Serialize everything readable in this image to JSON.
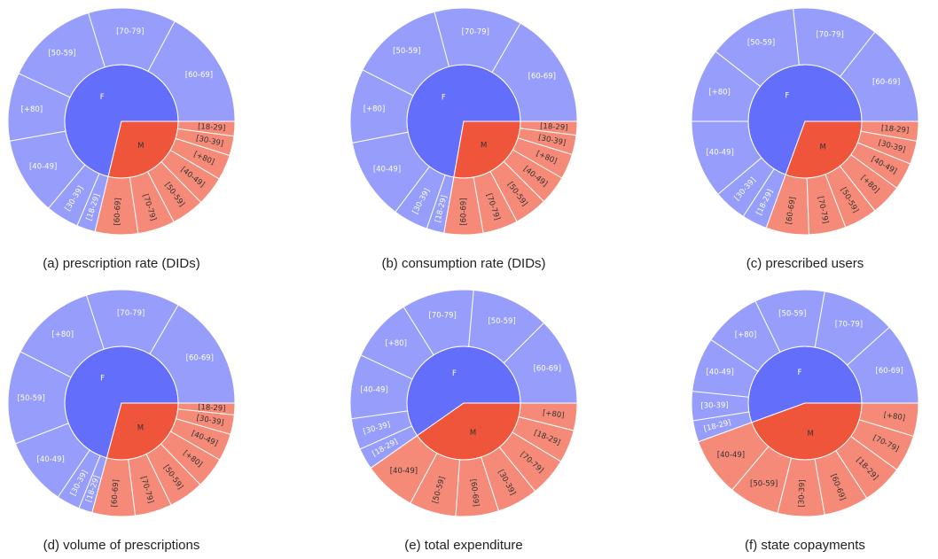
{
  "chart_data": [
    {
      "type": "sunburst",
      "caption": "(a) prescription rate (DIDs)",
      "groups": [
        {
          "label": "F",
          "color": "#636efa",
          "child_color": "#969dfa",
          "text_color": "#ffffff",
          "children": [
            "[60-69]",
            "[70-79]",
            "[50-59]",
            "[+80]",
            "[40-49]",
            "[30-39]",
            "[18-29]"
          ],
          "values": [
            62,
            45,
            48,
            35,
            40,
            17,
            9.5
          ]
        },
        {
          "label": "M",
          "color": "#ef553b",
          "child_color": "#f48a77",
          "text_color": "#333333",
          "children": [
            "[60-69]",
            "[70-79]",
            "[50-59]",
            "[40-49]",
            "[+80]",
            "[30-39]",
            "[18-29]"
          ],
          "values": [
            22,
            19,
            17,
            15,
            13,
            10,
            7.5
          ]
        }
      ]
    },
    {
      "type": "sunburst",
      "caption": "(b) consumption rate (DIDs)",
      "groups": [
        {
          "label": "F",
          "color": "#636efa",
          "child_color": "#969dfa",
          "text_color": "#ffffff",
          "children": [
            "[60-69]",
            "[70-79]",
            "[50-59]",
            "[+80]",
            "[40-49]",
            "[30-39]",
            "[18-29]"
          ],
          "values": [
            60,
            45,
            48,
            38,
            42,
            18,
            9
          ]
        },
        {
          "label": "M",
          "color": "#ef553b",
          "child_color": "#f48a77",
          "text_color": "#333333",
          "children": [
            "[60-69]",
            "[70-79]",
            "[50-59]",
            "[40-49]",
            "[+80]",
            "[30-39]",
            "[18-29]"
          ],
          "values": [
            20,
            18,
            17,
            15,
            13,
            10,
            7
          ]
        }
      ]
    },
    {
      "type": "sunburst",
      "caption": "(c) prescribed users",
      "groups": [
        {
          "label": "F",
          "color": "#636efa",
          "child_color": "#969dfa",
          "text_color": "#ffffff",
          "children": [
            "[60-69]",
            "[70-79]",
            "[50-59]",
            "[+80]",
            "[40-49]",
            "[30-39]",
            "[18-29]"
          ],
          "values": [
            52,
            44,
            46,
            38,
            40,
            17,
            13
          ]
        },
        {
          "label": "M",
          "color": "#ef553b",
          "child_color": "#f48a77",
          "text_color": "#333333",
          "children": [
            "[60-69]",
            "[70-79]",
            "[50-59]",
            "[+80]",
            "[40-49]",
            "[30-39]",
            "[18-29]"
          ],
          "values": [
            22,
            19,
            17,
            16,
            14,
            12,
            10
          ]
        }
      ]
    },
    {
      "type": "sunburst",
      "caption": "(d) volume of prescriptions",
      "groups": [
        {
          "label": "F",
          "color": "#636efa",
          "child_color": "#969dfa",
          "text_color": "#ffffff",
          "children": [
            "[60-69]",
            "[70-79]",
            "[+80]",
            "[50-59]",
            "[40-49]",
            "[30-39]",
            "[18-29]"
          ],
          "values": [
            60,
            48,
            45,
            48,
            35,
            12,
            7
          ]
        },
        {
          "label": "M",
          "color": "#ef553b",
          "child_color": "#f48a77",
          "text_color": "#333333",
          "children": [
            "[60-69]",
            "[70-79]",
            "[50-59]",
            "[+80]",
            "[40-49]",
            "[30-39]",
            "[18-29]"
          ],
          "values": [
            22,
            19,
            18,
            16,
            14,
            10,
            6
          ]
        }
      ]
    },
    {
      "type": "sunburst",
      "caption": "(e) total expenditure",
      "groups": [
        {
          "label": "F",
          "color": "#636efa",
          "child_color": "#969dfa",
          "text_color": "#ffffff",
          "children": [
            "[60-69]",
            "[50-59]",
            "[70-79]",
            "[+80]",
            "[40-49]",
            "[30-39]",
            "[18-29]"
          ],
          "values": [
            45,
            40,
            37,
            33,
            33,
            16,
            11
          ]
        },
        {
          "label": "M",
          "color": "#ef553b",
          "child_color": "#f48a77",
          "text_color": "#333333",
          "children": [
            "[40-49]",
            "[50-59]",
            "[60-69]",
            "[30-39]",
            "[70-79]",
            "[18-29]",
            "[+80]"
          ],
          "values": [
            27,
            24,
            22,
            21,
            20,
            17,
            14
          ]
        }
      ]
    },
    {
      "type": "sunburst",
      "caption": "(f) state copayments",
      "groups": [
        {
          "label": "F",
          "color": "#636efa",
          "child_color": "#969dfa",
          "text_color": "#ffffff",
          "children": [
            "[60-69]",
            "[70-79]",
            "[50-59]",
            "[+80]",
            "[40-49]",
            "[30-39]",
            "[18-29]"
          ],
          "values": [
            42,
            38,
            36,
            30,
            28,
            15,
            11
          ]
        },
        {
          "label": "M",
          "color": "#ef553b",
          "child_color": "#f48a77",
          "text_color": "#333333",
          "children": [
            "[40-49]",
            "[50-59]",
            "[30-39]",
            "[60-69]",
            "[18-29]",
            "[70-79]",
            "[+80]"
          ],
          "values": [
            30,
            26,
            24,
            23,
            21,
            19,
            17
          ]
        }
      ]
    }
  ]
}
